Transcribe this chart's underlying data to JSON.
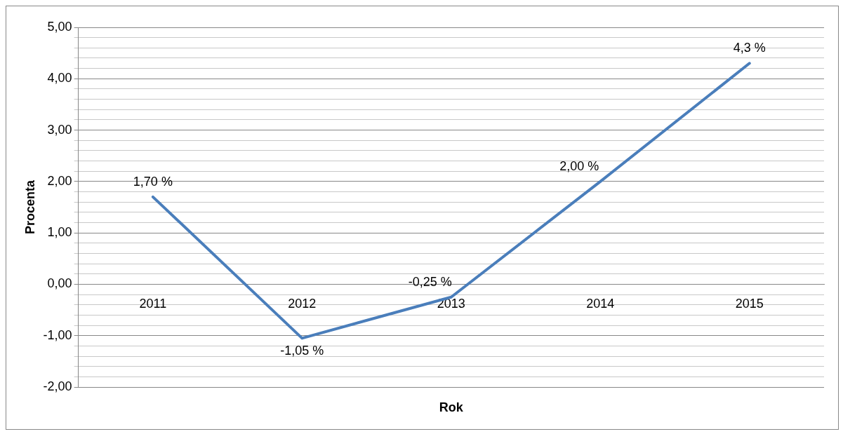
{
  "chart_data": {
    "type": "line",
    "xlabel": "Rok",
    "ylabel": "Procenta",
    "categories": [
      "2011",
      "2012",
      "2013",
      "2014",
      "2015"
    ],
    "series": [
      {
        "color": "#4a7ebb",
        "values": [
          1.7,
          -1.05,
          -0.25,
          2.0,
          4.3
        ],
        "value_labels": [
          "1,70 %",
          "-1,05 %",
          "-0,25 %",
          "2,00 %",
          "4,3 %"
        ]
      }
    ],
    "ylim": [
      -2,
      5
    ],
    "yticks": [
      {
        "value": -2,
        "label": "-2,00"
      },
      {
        "value": -1.8,
        "label": null
      },
      {
        "value": -1.6,
        "label": null
      },
      {
        "value": -1.4,
        "label": null
      },
      {
        "value": -1.2,
        "label": null
      },
      {
        "value": -1,
        "label": "-1,00"
      },
      {
        "value": -0.8,
        "label": null
      },
      {
        "value": -0.6,
        "label": null
      },
      {
        "value": -0.4,
        "label": null
      },
      {
        "value": -0.2,
        "label": null
      },
      {
        "value": 0,
        "label": "0,00"
      },
      {
        "value": 0.2,
        "label": null
      },
      {
        "value": 0.4,
        "label": null
      },
      {
        "value": 0.6,
        "label": null
      },
      {
        "value": 0.8,
        "label": null
      },
      {
        "value": 1,
        "label": "1,00"
      },
      {
        "value": 1.2,
        "label": null
      },
      {
        "value": 1.4,
        "label": null
      },
      {
        "value": 1.6,
        "label": null
      },
      {
        "value": 1.8,
        "label": null
      },
      {
        "value": 2,
        "label": "2,00"
      },
      {
        "value": 2.2,
        "label": null
      },
      {
        "value": 2.4,
        "label": null
      },
      {
        "value": 2.6,
        "label": null
      },
      {
        "value": 2.8,
        "label": null
      },
      {
        "value": 3,
        "label": "3,00"
      },
      {
        "value": 3.2,
        "label": null
      },
      {
        "value": 3.4,
        "label": null
      },
      {
        "value": 3.6,
        "label": null
      },
      {
        "value": 3.8,
        "label": null
      },
      {
        "value": 4,
        "label": "4,00"
      },
      {
        "value": 4.2,
        "label": null
      },
      {
        "value": 4.4,
        "label": null
      },
      {
        "value": 4.6,
        "label": null
      },
      {
        "value": 4.8,
        "label": null
      },
      {
        "value": 5,
        "label": "5,00"
      }
    ],
    "grid": "y",
    "legend": false,
    "marker": "none",
    "line_style": "solid"
  }
}
